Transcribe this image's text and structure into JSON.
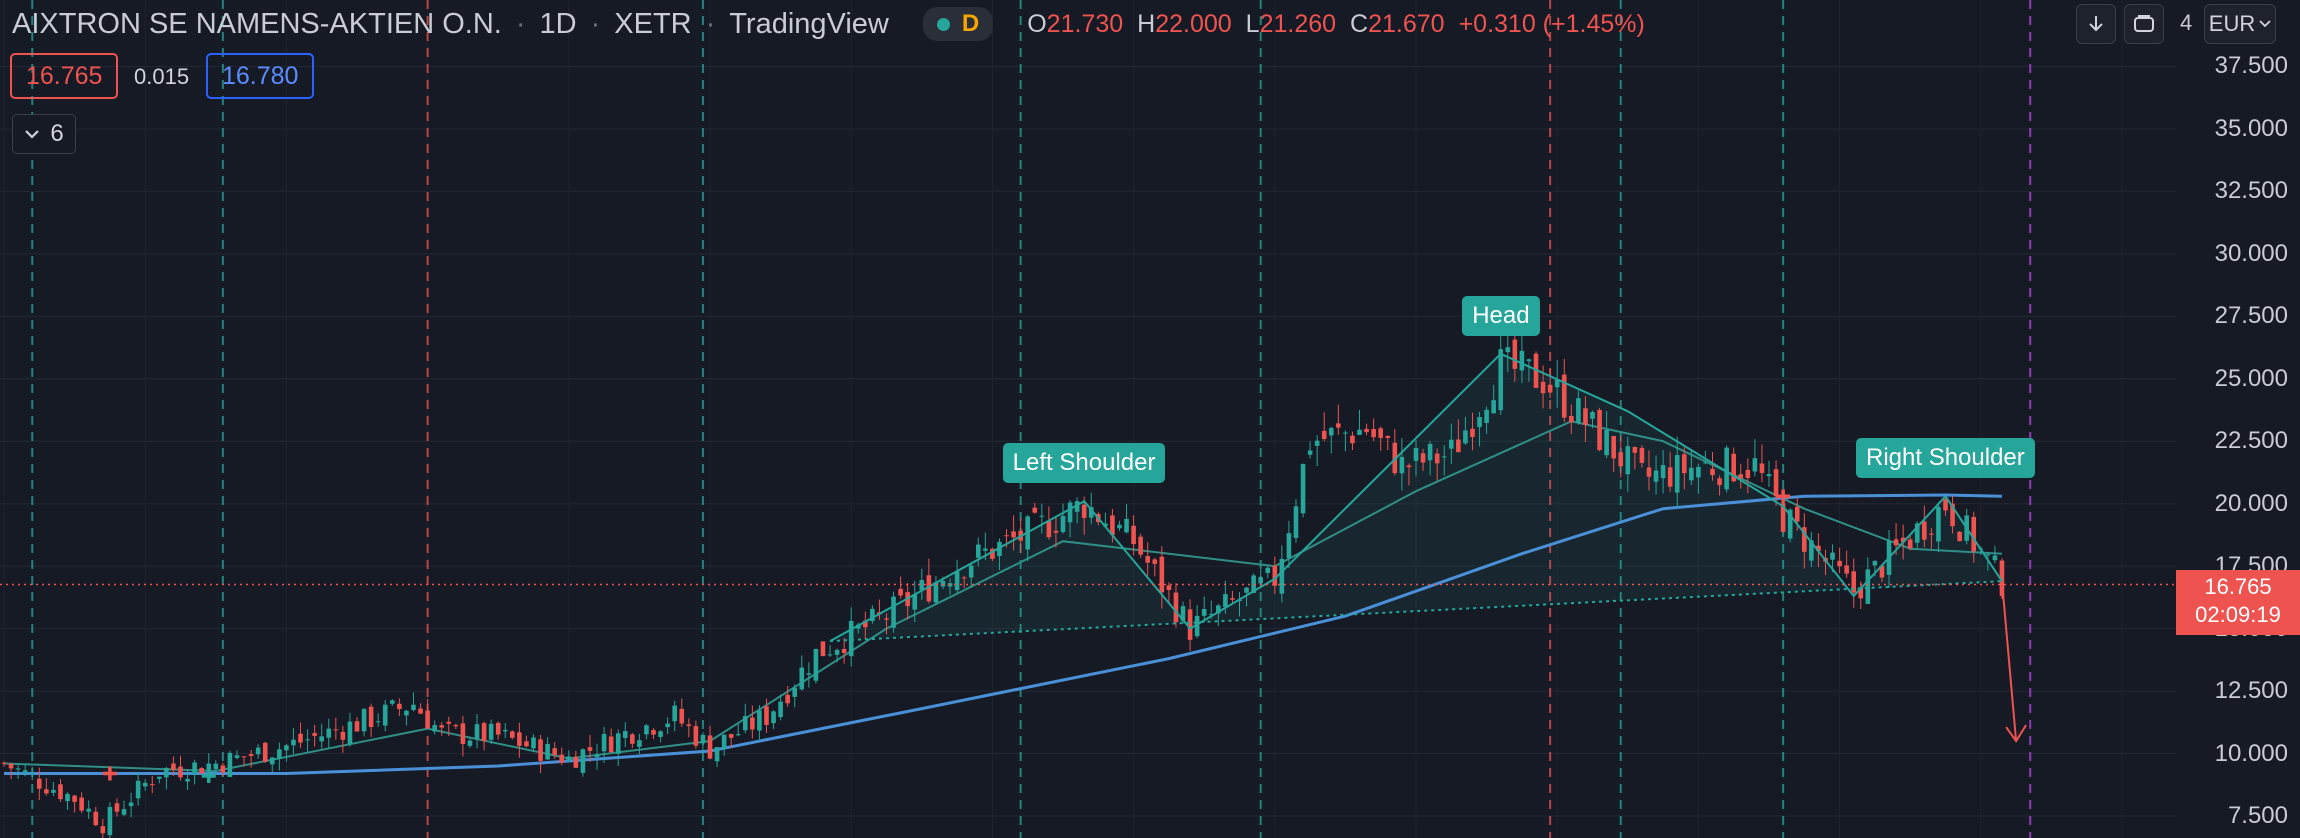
{
  "header": {
    "symbol": "AIXTRON SE NAMENS-AKTIEN O.N.",
    "interval": "1D",
    "exchange": "XETR",
    "source": "TradingView",
    "flag": "D",
    "ohlc": {
      "o_key": "O",
      "o": "21.730",
      "h_key": "H",
      "h": "22.000",
      "l_key": "L",
      "l": "21.260",
      "c_key": "C",
      "c": "21.670",
      "change": "+0.310 (+1.45%)"
    }
  },
  "quote": {
    "bid": "16.765",
    "spread": "0.015",
    "ask": "16.780"
  },
  "indicators_toggle": {
    "count": "6"
  },
  "toolbar": {
    "currency": "EUR",
    "axis_partial": "4"
  },
  "price_tag": {
    "price": "16.765",
    "countdown": "02:09:19"
  },
  "colors": {
    "background": "#161a25",
    "up": "#26a69a",
    "down": "#ef5350",
    "ma_long": "#4a90d9",
    "ma_short": "#2f8f86",
    "pattern": "#26a69a",
    "target_arrow": "#ef5350",
    "vline_green": "#26a69a",
    "vline_red": "#ef5350",
    "vline_purple": "#b44be0"
  },
  "chart_data": {
    "type": "candlestick",
    "y_axis_ticks": [
      "7.500",
      "10.000",
      "12.500",
      "15.000",
      "17.500",
      "20.000",
      "22.500",
      "25.000",
      "27.500",
      "30.000",
      "32.500",
      "35.000",
      "37.500"
    ],
    "ylim": [
      6.5,
      39.5
    ],
    "current_price": 16.765,
    "pattern": {
      "name": "Head and Shoulders",
      "labels": [
        {
          "text": "Left Shoulder"
        },
        {
          "text": "Head"
        },
        {
          "text": "Right Shoulder"
        }
      ],
      "points": [
        {
          "bar": 117,
          "price": 14.5
        },
        {
          "bar": 153,
          "price": 20.1
        },
        {
          "bar": 168,
          "price": 15.0
        },
        {
          "bar": 180,
          "price": 17.0
        },
        {
          "bar": 212,
          "price": 26.0
        },
        {
          "bar": 230,
          "price": 23.7
        },
        {
          "bar": 252,
          "price": 19.9
        },
        {
          "bar": 262,
          "price": 16.3
        },
        {
          "bar": 275,
          "price": 20.3
        },
        {
          "bar": 283,
          "price": 16.9
        }
      ],
      "neckline": [
        {
          "bar": 117,
          "price": 14.5
        },
        {
          "bar": 283,
          "price": 16.9
        }
      ],
      "target": {
        "bar": 285,
        "price": 10.5
      }
    },
    "ma_long": [
      {
        "bar": 0,
        "price": 9.2
      },
      {
        "bar": 40,
        "price": 9.2
      },
      {
        "bar": 70,
        "price": 9.5
      },
      {
        "bar": 100,
        "price": 10.1
      },
      {
        "bar": 130,
        "price": 11.8
      },
      {
        "bar": 165,
        "price": 13.8
      },
      {
        "bar": 190,
        "price": 15.5
      },
      {
        "bar": 215,
        "price": 18.0
      },
      {
        "bar": 235,
        "price": 19.8
      },
      {
        "bar": 255,
        "price": 20.3
      },
      {
        "bar": 275,
        "price": 20.35
      },
      {
        "bar": 283,
        "price": 20.3
      }
    ],
    "ma_short": [
      {
        "bar": 0,
        "price": 9.6
      },
      {
        "bar": 30,
        "price": 9.3
      },
      {
        "bar": 60,
        "price": 11.0
      },
      {
        "bar": 80,
        "price": 9.8
      },
      {
        "bar": 100,
        "price": 10.5
      },
      {
        "bar": 125,
        "price": 15.0
      },
      {
        "bar": 150,
        "price": 18.5
      },
      {
        "bar": 165,
        "price": 18.0
      },
      {
        "bar": 180,
        "price": 17.5
      },
      {
        "bar": 200,
        "price": 20.5
      },
      {
        "bar": 222,
        "price": 23.3
      },
      {
        "bar": 235,
        "price": 22.5
      },
      {
        "bar": 255,
        "price": 19.8
      },
      {
        "bar": 270,
        "price": 18.2
      },
      {
        "bar": 283,
        "price": 18.0
      }
    ],
    "vertical_lines": [
      {
        "bar": 4,
        "color": "green"
      },
      {
        "bar": 31,
        "color": "green"
      },
      {
        "bar": 60,
        "color": "red"
      },
      {
        "bar": 99,
        "color": "green"
      },
      {
        "bar": 144,
        "color": "green"
      },
      {
        "bar": 178,
        "color": "green"
      },
      {
        "bar": 219,
        "color": "red"
      },
      {
        "bar": 229,
        "color": "green"
      },
      {
        "bar": 252,
        "color": "green"
      },
      {
        "bar": 287,
        "color": "purple"
      }
    ],
    "candle_anchors": [
      {
        "bar": 0,
        "price": 9.6
      },
      {
        "bar": 10,
        "price": 8.2
      },
      {
        "bar": 14,
        "price": 7.2
      },
      {
        "bar": 22,
        "price": 9.3
      },
      {
        "bar": 30,
        "price": 9.6
      },
      {
        "bar": 40,
        "price": 10.3
      },
      {
        "bar": 50,
        "price": 11.2
      },
      {
        "bar": 58,
        "price": 12.0
      },
      {
        "bar": 62,
        "price": 10.8
      },
      {
        "bar": 70,
        "price": 10.7
      },
      {
        "bar": 80,
        "price": 9.8
      },
      {
        "bar": 88,
        "price": 10.8
      },
      {
        "bar": 95,
        "price": 11.5
      },
      {
        "bar": 100,
        "price": 10.2
      },
      {
        "bar": 108,
        "price": 11.5
      },
      {
        "bar": 115,
        "price": 14.0
      },
      {
        "bar": 125,
        "price": 15.5
      },
      {
        "bar": 135,
        "price": 17.5
      },
      {
        "bar": 145,
        "price": 18.8
      },
      {
        "bar": 153,
        "price": 20.0
      },
      {
        "bar": 160,
        "price": 18.5
      },
      {
        "bar": 168,
        "price": 15.0
      },
      {
        "bar": 180,
        "price": 17.0
      },
      {
        "bar": 185,
        "price": 22.5
      },
      {
        "bar": 193,
        "price": 23.0
      },
      {
        "bar": 198,
        "price": 21.5
      },
      {
        "bar": 205,
        "price": 22.0
      },
      {
        "bar": 212,
        "price": 25.5
      },
      {
        "bar": 218,
        "price": 25.0
      },
      {
        "bar": 225,
        "price": 23.0
      },
      {
        "bar": 232,
        "price": 21.0
      },
      {
        "bar": 240,
        "price": 21.5
      },
      {
        "bar": 248,
        "price": 21.5
      },
      {
        "bar": 252,
        "price": 19.5
      },
      {
        "bar": 262,
        "price": 16.5
      },
      {
        "bar": 275,
        "price": 20.0
      },
      {
        "bar": 283,
        "price": 16.9
      }
    ],
    "x_bars": 300
  }
}
